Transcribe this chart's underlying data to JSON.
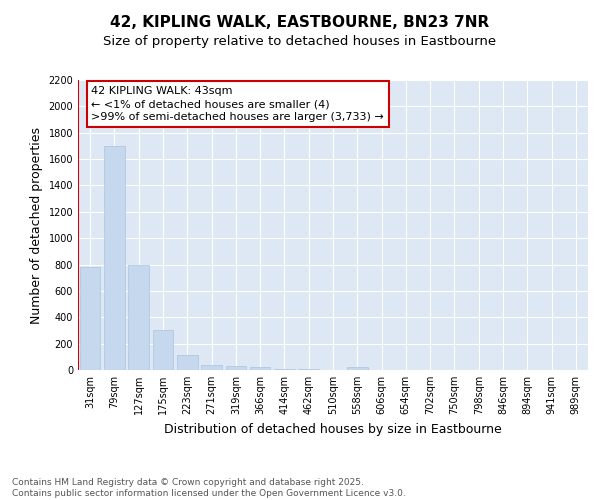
{
  "title1": "42, KIPLING WALK, EASTBOURNE, BN23 7NR",
  "title2": "Size of property relative to detached houses in Eastbourne",
  "xlabel": "Distribution of detached houses by size in Eastbourne",
  "ylabel": "Number of detached properties",
  "categories": [
    "31sqm",
    "79sqm",
    "127sqm",
    "175sqm",
    "223sqm",
    "271sqm",
    "319sqm",
    "366sqm",
    "414sqm",
    "462sqm",
    "510sqm",
    "558sqm",
    "606sqm",
    "654sqm",
    "702sqm",
    "750sqm",
    "798sqm",
    "846sqm",
    "894sqm",
    "941sqm",
    "989sqm"
  ],
  "values": [
    780,
    1700,
    800,
    300,
    115,
    40,
    30,
    20,
    10,
    5,
    0,
    20,
    0,
    0,
    0,
    0,
    0,
    0,
    0,
    0,
    0
  ],
  "bar_color": "#c5d8ed",
  "bar_edge_color": "#adc4e0",
  "highlight_color": "#cc0000",
  "annotation_text": "42 KIPLING WALK: 43sqm\n← <1% of detached houses are smaller (4)\n>99% of semi-detached houses are larger (3,733) →",
  "ylim": [
    0,
    2200
  ],
  "yticks": [
    0,
    200,
    400,
    600,
    800,
    1000,
    1200,
    1400,
    1600,
    1800,
    2000,
    2200
  ],
  "footer": "Contains HM Land Registry data © Crown copyright and database right 2025.\nContains public sector information licensed under the Open Government Licence v3.0.",
  "bg_color": "#dde8f4",
  "title_fontsize": 11,
  "subtitle_fontsize": 9.5,
  "axis_label_fontsize": 9,
  "tick_fontsize": 7,
  "annotation_fontsize": 8,
  "footer_fontsize": 6.5
}
